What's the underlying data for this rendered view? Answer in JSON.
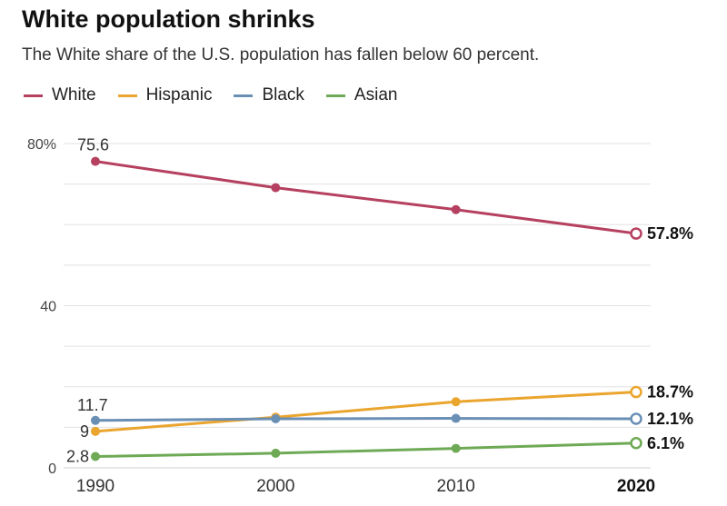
{
  "chart_data": {
    "type": "line",
    "title": "White population shrinks",
    "subtitle": "The White share of the U.S. population has fallen below 60 percent.",
    "x": [
      "1990",
      "2000",
      "2010",
      "2020"
    ],
    "x_bold_last": true,
    "ylim": [
      0,
      80
    ],
    "y_ticks": [
      0,
      40,
      80
    ],
    "y_tick_labels": [
      "0",
      "40",
      "80%"
    ],
    "grid": true,
    "legend_position": "top-left",
    "series": [
      {
        "name": "White",
        "color": "#b5405f",
        "values": [
          75.6,
          69.1,
          63.7,
          57.8
        ],
        "start_label": "75.6",
        "end_label": "57.8%"
      },
      {
        "name": "Hispanic",
        "color": "#eaa52e",
        "values": [
          9.0,
          12.5,
          16.3,
          18.7
        ],
        "start_label": "9",
        "end_label": "18.7%"
      },
      {
        "name": "Black",
        "color": "#6a8fb5",
        "values": [
          11.7,
          12.1,
          12.2,
          12.1
        ],
        "start_label": "11.7",
        "end_label": "12.1%"
      },
      {
        "name": "Asian",
        "color": "#6eaa55",
        "values": [
          2.8,
          3.6,
          4.8,
          6.1
        ],
        "start_label": "2.8",
        "end_label": "6.1%"
      }
    ]
  }
}
